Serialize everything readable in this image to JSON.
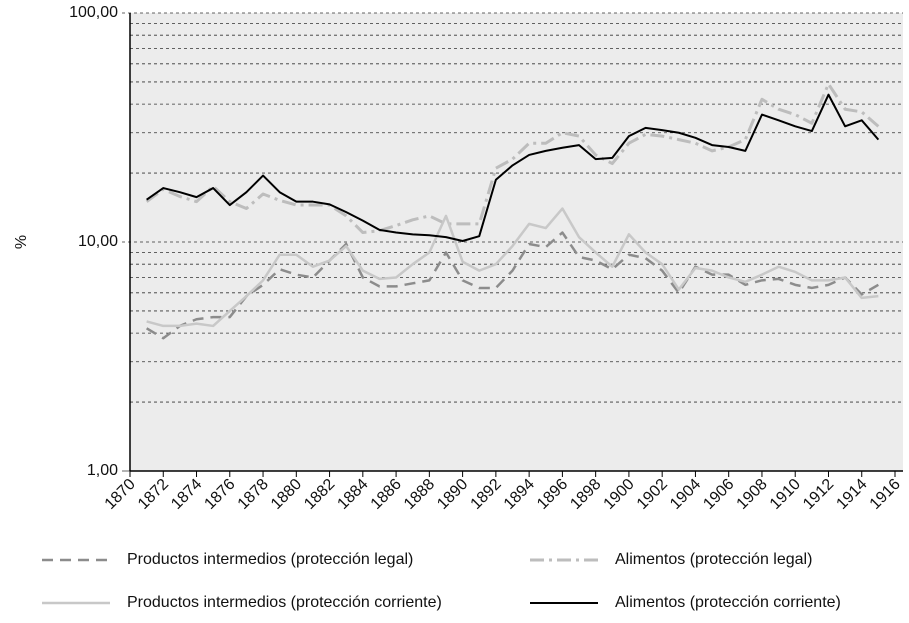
{
  "chart_data": {
    "type": "line",
    "ylabel": "%",
    "log_y": true,
    "grid": true,
    "legend_position": "bottom",
    "x": [
      1871,
      1872,
      1873,
      1874,
      1875,
      1876,
      1877,
      1878,
      1879,
      1880,
      1881,
      1882,
      1883,
      1884,
      1885,
      1886,
      1887,
      1888,
      1889,
      1890,
      1891,
      1892,
      1893,
      1894,
      1895,
      1896,
      1897,
      1898,
      1899,
      1900,
      1901,
      1902,
      1903,
      1904,
      1905,
      1906,
      1907,
      1908,
      1909,
      1910,
      1911,
      1912,
      1913,
      1914,
      1915
    ],
    "xlim": [
      1870,
      1916
    ],
    "xticks": [
      1870,
      1872,
      1874,
      1876,
      1878,
      1880,
      1882,
      1884,
      1886,
      1888,
      1890,
      1892,
      1894,
      1896,
      1898,
      1900,
      1902,
      1904,
      1906,
      1908,
      1910,
      1912,
      1914,
      1916
    ],
    "ylim": [
      1,
      100
    ],
    "yticks": [
      {
        "value": 1,
        "label": "1,00"
      },
      {
        "value": 10,
        "label": "10,00"
      },
      {
        "value": 100,
        "label": "100,00"
      }
    ],
    "yminor": [
      2,
      3,
      4,
      5,
      6,
      7,
      8,
      9,
      20,
      30,
      40,
      50,
      60,
      70,
      80,
      90
    ],
    "series": [
      {
        "name": "Productos intermedios (protección legal)",
        "color": "#8c8c8c",
        "dash": "dashed",
        "values": [
          4.2,
          3.8,
          4.3,
          4.6,
          4.7,
          4.7,
          5.8,
          6.5,
          7.6,
          7.2,
          7,
          8.3,
          9.8,
          7,
          6.4,
          6.4,
          6.6,
          6.8,
          9,
          6.8,
          6.3,
          6.3,
          7.5,
          9.8,
          9.5,
          11,
          8.6,
          8.3,
          7.6,
          8.8,
          8.5,
          7.5,
          6,
          7.8,
          7.2,
          7.2,
          6.5,
          6.8,
          6.9,
          6.5,
          6.3,
          6.5,
          7,
          5.9,
          6.5
        ]
      },
      {
        "name": "Alimentos (protección legal)",
        "color": "#bdbdbd",
        "dash": "dashdot",
        "values": [
          15,
          17,
          15.8,
          15,
          17.5,
          15,
          14,
          16.2,
          15.2,
          14.5,
          14.5,
          14.5,
          13,
          11,
          11.2,
          11.8,
          12.5,
          13,
          12,
          12,
          12,
          21,
          23,
          27,
          27,
          30,
          29,
          24,
          22,
          27,
          29.5,
          29,
          28,
          27,
          25,
          26,
          28,
          42,
          38,
          36,
          33,
          49,
          38,
          37,
          32
        ]
      },
      {
        "name": "Productos intermedios (protección corriente)",
        "color": "#c8c8c8",
        "dash": "solid",
        "values": [
          4.5,
          4.3,
          4.3,
          4.4,
          4.3,
          5,
          5.8,
          6.8,
          8.8,
          8.8,
          7.8,
          8.3,
          9.6,
          7.5,
          6.9,
          7,
          8,
          9,
          13,
          8.2,
          7.5,
          8,
          9.6,
          12,
          11.5,
          14,
          10.5,
          9,
          7.8,
          10.8,
          9,
          8,
          6.2,
          7.7,
          7.5,
          7,
          6.7,
          7.2,
          7.8,
          7.4,
          6.8,
          6.8,
          7,
          5.7,
          5.8
        ]
      },
      {
        "name": "Alimentos (protección corriente)",
        "color": "#000000",
        "dash": "solid",
        "values": [
          15.3,
          17.2,
          16.5,
          15.7,
          17.2,
          14.5,
          16.5,
          19.5,
          16.5,
          15,
          15,
          14.6,
          13.5,
          12.4,
          11.3,
          11,
          10.8,
          10.7,
          10.5,
          10.1,
          10.6,
          18.7,
          21.6,
          24,
          25,
          25.8,
          26.5,
          23,
          23.3,
          29,
          31.5,
          30.8,
          30,
          28.5,
          26.5,
          26,
          25,
          36,
          34,
          32,
          30.5,
          44,
          32,
          34,
          28
        ]
      }
    ]
  }
}
